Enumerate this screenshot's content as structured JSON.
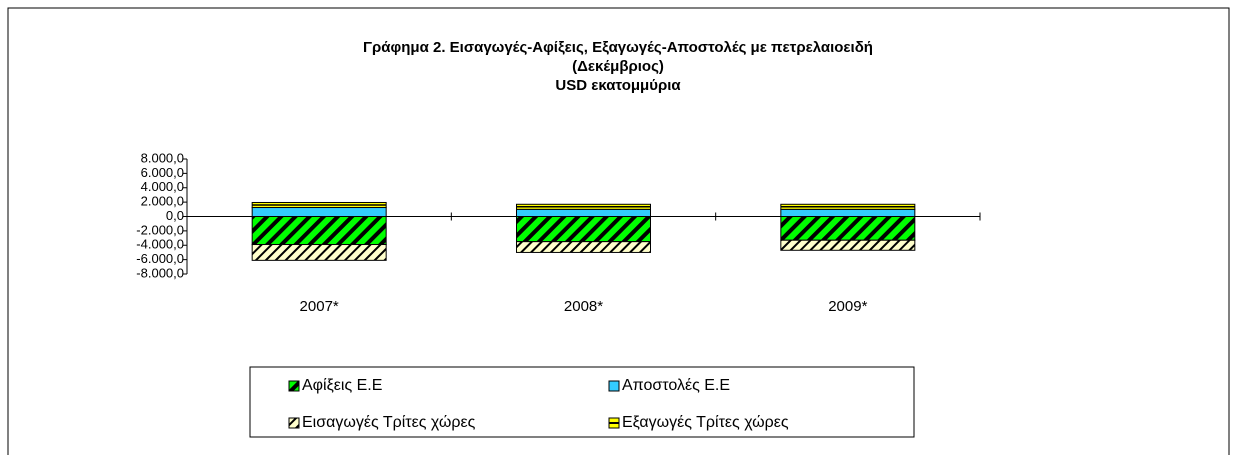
{
  "chart_data": {
    "type": "bar",
    "stacked": true,
    "title": [
      "Γράφημα 2. Εισαγωγές-Αφίξεις,  Εξαγωγές-Αποστολές με πετρελαιοειδή",
      "(Δεκέμβριος)",
      "USD εκατομμύρια"
    ],
    "categories": [
      "2007*",
      "2008*",
      "2009*"
    ],
    "series": [
      {
        "name": "Αφίξεις Ε.Ε",
        "color": "#00ff00",
        "values": [
          -3900,
          -3500,
          -3300
        ]
      },
      {
        "name": "Αποστολές  Ε.Ε",
        "color": "#33ccff",
        "values": [
          1250,
          1000,
          1000
        ]
      },
      {
        "name": "Εισαγωγές Τρίτες χώρες",
        "color": "#ffffcc",
        "values": [
          -2200,
          -1500,
          -1400
        ]
      },
      {
        "name": "Εξαγωγές Τρίτες χώρες",
        "color": "#ffff00",
        "values": [
          700,
          700,
          700
        ]
      }
    ],
    "ylim": [
      -8000,
      8000
    ],
    "yticks": [
      {
        "value": 8000,
        "label": "8.000,0"
      },
      {
        "value": 6000,
        "label": "6.000,0"
      },
      {
        "value": 4000,
        "label": "4.000,0"
      },
      {
        "value": 2000,
        "label": "2.000,0"
      },
      {
        "value": 0,
        "label": "0,0"
      },
      {
        "value": -2000,
        "label": "-2.000,0"
      },
      {
        "value": -4000,
        "label": "-4.000,0"
      },
      {
        "value": -6000,
        "label": "-6.000,0"
      },
      {
        "value": -8000,
        "label": "-8.000,0"
      }
    ],
    "legend": "bottom"
  }
}
